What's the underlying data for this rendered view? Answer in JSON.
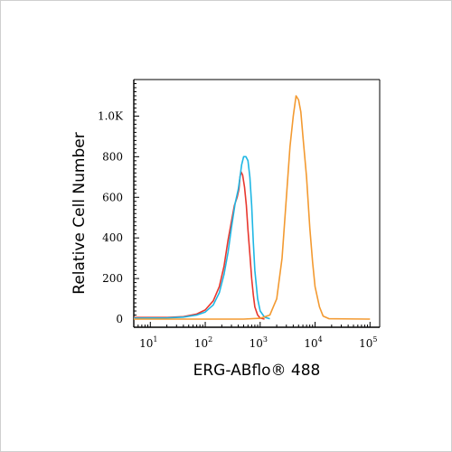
{
  "chart_data": {
    "type": "line",
    "title": "",
    "xlabel": "ERG-ABflo® 488",
    "ylabel": "Relative Cell Number",
    "x_scale": "log",
    "xlim": [
      5,
      150000
    ],
    "ylim": [
      -40,
      1180
    ],
    "y_ticks": [
      0,
      200,
      400,
      600,
      800,
      1000
    ],
    "y_tick_labels": [
      "0",
      "200",
      "400",
      "600",
      "800",
      "1.0K"
    ],
    "x_ticks": [
      10,
      100,
      1000,
      10000,
      100000
    ],
    "x_tick_labels": [
      {
        "base": "10",
        "exp": "1"
      },
      {
        "base": "10",
        "exp": "2"
      },
      {
        "base": "10",
        "exp": "3"
      },
      {
        "base": "10",
        "exp": "4"
      },
      {
        "base": "10",
        "exp": "5"
      }
    ],
    "series": [
      {
        "color": "#e8372e",
        "points": [
          [
            5,
            8
          ],
          [
            20,
            8
          ],
          [
            40,
            12
          ],
          [
            70,
            25
          ],
          [
            100,
            45
          ],
          [
            140,
            90
          ],
          [
            180,
            160
          ],
          [
            220,
            260
          ],
          [
            260,
            390
          ],
          [
            300,
            480
          ],
          [
            340,
            560
          ],
          [
            380,
            600
          ],
          [
            410,
            640
          ],
          [
            430,
            700
          ],
          [
            450,
            725
          ],
          [
            480,
            710
          ],
          [
            520,
            650
          ],
          [
            560,
            560
          ],
          [
            600,
            440
          ],
          [
            650,
            320
          ],
          [
            700,
            200
          ],
          [
            750,
            120
          ],
          [
            800,
            60
          ],
          [
            900,
            20
          ],
          [
            1000,
            5
          ],
          [
            1200,
            0
          ]
        ]
      },
      {
        "color": "#1fb7e4",
        "points": [
          [
            5,
            5
          ],
          [
            20,
            6
          ],
          [
            40,
            10
          ],
          [
            70,
            20
          ],
          [
            100,
            35
          ],
          [
            140,
            70
          ],
          [
            180,
            130
          ],
          [
            220,
            220
          ],
          [
            260,
            330
          ],
          [
            300,
            450
          ],
          [
            350,
            570
          ],
          [
            400,
            640
          ],
          [
            430,
            700
          ],
          [
            460,
            760
          ],
          [
            500,
            800
          ],
          [
            550,
            800
          ],
          [
            600,
            780
          ],
          [
            650,
            700
          ],
          [
            700,
            560
          ],
          [
            750,
            380
          ],
          [
            800,
            240
          ],
          [
            900,
            100
          ],
          [
            1000,
            40
          ],
          [
            1200,
            10
          ],
          [
            1500,
            2
          ]
        ]
      },
      {
        "color": "#f39a31",
        "points": [
          [
            5,
            0
          ],
          [
            500,
            0
          ],
          [
            1000,
            4
          ],
          [
            1500,
            20
          ],
          [
            2000,
            100
          ],
          [
            2500,
            300
          ],
          [
            3000,
            600
          ],
          [
            3500,
            850
          ],
          [
            4000,
            1000
          ],
          [
            4500,
            1100
          ],
          [
            5000,
            1080
          ],
          [
            5500,
            1020
          ],
          [
            6000,
            900
          ],
          [
            7000,
            700
          ],
          [
            8000,
            450
          ],
          [
            9000,
            280
          ],
          [
            10000,
            160
          ],
          [
            12000,
            60
          ],
          [
            14000,
            15
          ],
          [
            18000,
            2
          ],
          [
            100000,
            0
          ]
        ]
      }
    ]
  }
}
